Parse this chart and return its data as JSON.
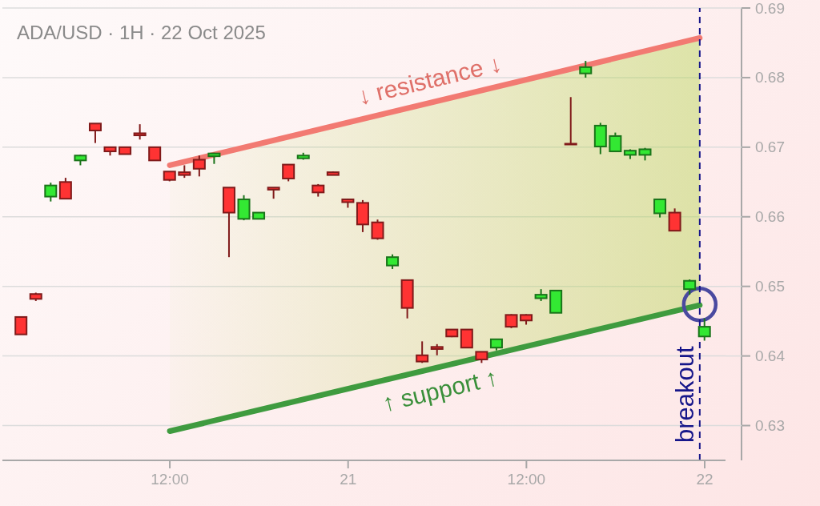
{
  "chart_data": {
    "type": "candlestick",
    "title": "ADA/USD · 1H · 22 Oct 2025",
    "x": [
      "2025-10-20T02:00",
      "2025-10-20T03:00",
      "2025-10-20T04:00",
      "2025-10-20T05:00",
      "2025-10-20T06:00",
      "2025-10-20T07:00",
      "2025-10-20T08:00",
      "2025-10-20T09:00",
      "2025-10-20T10:00",
      "2025-10-20T11:00",
      "2025-10-20T12:00",
      "2025-10-20T13:00",
      "2025-10-20T14:00",
      "2025-10-20T15:00",
      "2025-10-20T16:00",
      "2025-10-20T17:00",
      "2025-10-20T18:00",
      "2025-10-20T19:00",
      "2025-10-20T20:00",
      "2025-10-20T21:00",
      "2025-10-20T22:00",
      "2025-10-20T23:00",
      "2025-10-21T00:00",
      "2025-10-21T01:00",
      "2025-10-21T02:00",
      "2025-10-21T03:00",
      "2025-10-21T04:00",
      "2025-10-21T05:00",
      "2025-10-21T06:00",
      "2025-10-21T07:00",
      "2025-10-21T08:00",
      "2025-10-21T09:00",
      "2025-10-21T10:00",
      "2025-10-21T11:00",
      "2025-10-21T12:00",
      "2025-10-21T13:00",
      "2025-10-21T14:00",
      "2025-10-21T15:00",
      "2025-10-21T16:00",
      "2025-10-21T17:00",
      "2025-10-21T18:00",
      "2025-10-21T19:00",
      "2025-10-21T20:00",
      "2025-10-21T21:00",
      "2025-10-21T22:00",
      "2025-10-21T23:00",
      "2025-10-22T00:00"
    ],
    "ohlc": [
      [
        0.6456,
        0.6456,
        0.6431,
        0.6431
      ],
      [
        0.6489,
        0.6491,
        0.6479,
        0.6482
      ],
      [
        0.6629,
        0.6649,
        0.6622,
        0.6645
      ],
      [
        0.665,
        0.6656,
        0.6626,
        0.6626
      ],
      [
        0.6681,
        0.6689,
        0.6674,
        0.6688
      ],
      [
        0.6734,
        0.6734,
        0.6706,
        0.6724
      ],
      [
        0.67,
        0.6701,
        0.6688,
        0.6694
      ],
      [
        0.67,
        0.67,
        0.669,
        0.669
      ],
      [
        0.672,
        0.6733,
        0.6711,
        0.6717
      ],
      [
        0.67,
        0.67,
        0.6681,
        0.6681
      ],
      [
        0.6665,
        0.6665,
        0.6651,
        0.6653
      ],
      [
        0.6664,
        0.6674,
        0.6656,
        0.666
      ],
      [
        0.6682,
        0.6688,
        0.6658,
        0.6669
      ],
      [
        0.6687,
        0.6692,
        0.6676,
        0.6691
      ],
      [
        0.6642,
        0.6642,
        0.6542,
        0.6606
      ],
      [
        0.6597,
        0.6631,
        0.6595,
        0.6625
      ],
      [
        0.6597,
        0.6606,
        0.6597,
        0.6606
      ],
      [
        0.6642,
        0.6642,
        0.6626,
        0.6639
      ],
      [
        0.6675,
        0.6675,
        0.6651,
        0.6655
      ],
      [
        0.6684,
        0.6692,
        0.6682,
        0.6688
      ],
      [
        0.6645,
        0.6647,
        0.6629,
        0.6635
      ],
      [
        0.6664,
        0.6665,
        0.666,
        0.666
      ],
      [
        0.6625,
        0.6626,
        0.6613,
        0.6621
      ],
      [
        0.662,
        0.6624,
        0.6578,
        0.6589
      ],
      [
        0.6592,
        0.6596,
        0.6567,
        0.6569
      ],
      [
        0.653,
        0.6546,
        0.6525,
        0.6542
      ],
      [
        0.6509,
        0.651,
        0.6454,
        0.6469
      ],
      [
        0.6401,
        0.6421,
        0.639,
        0.6392
      ],
      [
        0.6413,
        0.6417,
        0.6401,
        0.641
      ],
      [
        0.6438,
        0.6438,
        0.6427,
        0.6428
      ],
      [
        0.6438,
        0.6438,
        0.6412,
        0.6412
      ],
      [
        0.6406,
        0.6406,
        0.639,
        0.6395
      ],
      [
        0.6412,
        0.6424,
        0.6408,
        0.6424
      ],
      [
        0.6459,
        0.646,
        0.644,
        0.6442
      ],
      [
        0.6459,
        0.646,
        0.6445,
        0.6451
      ],
      [
        0.6483,
        0.6496,
        0.6479,
        0.6488
      ],
      [
        0.6462,
        0.6494,
        0.6462,
        0.6494
      ],
      [
        0.6705,
        0.6772,
        0.6704,
        0.6704
      ],
      [
        0.6806,
        0.6824,
        0.68,
        0.6815
      ],
      [
        0.6701,
        0.6735,
        0.669,
        0.6731
      ],
      [
        0.6694,
        0.6721,
        0.6693,
        0.6716
      ],
      [
        0.6689,
        0.6697,
        0.6683,
        0.6695
      ],
      [
        0.6689,
        0.6699,
        0.6681,
        0.6697
      ],
      [
        0.6605,
        0.6626,
        0.6599,
        0.6625
      ],
      [
        0.6606,
        0.6612,
        0.658,
        0.658
      ],
      [
        0.6496,
        0.651,
        0.6488,
        0.6508
      ],
      [
        0.6428,
        0.6454,
        0.6422,
        0.6442
      ]
    ],
    "colors": [
      "#ff3333",
      "#ff3333",
      "#33e833",
      "#ff3333",
      "#33e833",
      "#ff3333",
      "#ff3333",
      "#ff3333",
      "#ff3333",
      "#ff3333",
      "#ff3333",
      "#ff3333",
      "#ff3333",
      "#33e833",
      "#ff3333",
      "#33e833",
      "#33e833",
      "#ff3333",
      "#ff3333",
      "#33e833",
      "#ff3333",
      "#ff3333",
      "#ff3333",
      "#ff3333",
      "#ff3333",
      "#33e833",
      "#ff3333",
      "#ff3333",
      "#ff3333",
      "#ff3333",
      "#ff3333",
      "#ff3333",
      "#33e833",
      "#ff3333",
      "#ff3333",
      "#33e833",
      "#33e833",
      "#ff3333",
      "#33e833",
      "#33e833",
      "#33e833",
      "#33e833",
      "#33e833",
      "#33e833",
      "#ff3333",
      "#33e833",
      "#33e833"
    ],
    "series": [
      {
        "name": "↓ resistance ↓",
        "type": "line",
        "color": "#f27a72",
        "x": [
          "2025-10-20T12:00",
          "2025-10-21T23:40"
        ],
        "values": [
          0.6674,
          0.6857
        ]
      },
      {
        "name": "↑ support ↑",
        "type": "line",
        "color": "#3f9b3f",
        "x": [
          "2025-10-20T12:00",
          "2025-10-21T23:40"
        ],
        "values": [
          0.6292,
          0.6473
        ],
        "lower": [
          0.6292,
          0.6473
        ],
        "upper": [
          0.6674,
          0.6857
        ]
      },
      {
        "type": "scatter",
        "color": "#4a4aa0",
        "marker": "circle",
        "x": [
          "2025-10-21T23:40"
        ],
        "values": [
          0.6474
        ]
      }
    ],
    "ref_lines": [
      {
        "axis": "x",
        "value": "2025-10-21T23:40",
        "label": "breakout",
        "color": "#16168a",
        "line_style": "dashed"
      }
    ],
    "xlim": [
      "2025-10-20T00:44",
      "2025-10-22T01:24"
    ],
    "xticks": [
      {
        "value": "2025-10-20T12:00",
        "label": "12:00"
      },
      {
        "value": "2025-10-21T00:00",
        "label": "21"
      },
      {
        "value": "2025-10-21T12:00",
        "label": "12:00"
      },
      {
        "value": "2025-10-22T00:00",
        "label": "22"
      }
    ],
    "ylim": [
      0.625,
      0.69
    ],
    "yticks": [
      0.63,
      0.64,
      0.65,
      0.66,
      0.67,
      0.68,
      0.69
    ],
    "grid": "y"
  }
}
